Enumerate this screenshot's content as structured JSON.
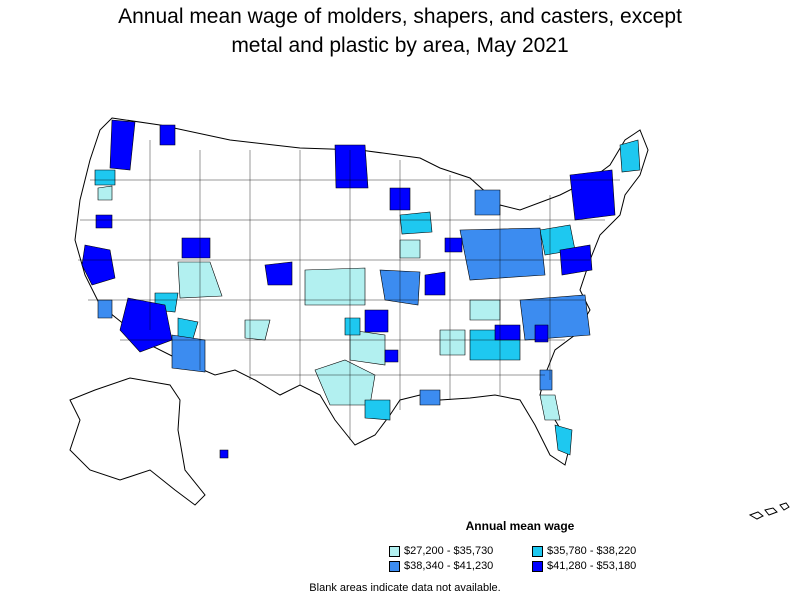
{
  "title_line1": "Annual mean wage of molders, shapers, and casters, except",
  "title_line2": "metal and plastic by area, May 2021",
  "legend": {
    "title": "Annual mean wage",
    "items": [
      {
        "label": "$27,200 - $35,730",
        "color": "#b2f0f0"
      },
      {
        "label": "$35,780 - $38,220",
        "color": "#1ec8f0"
      },
      {
        "label": "$38,340 - $41,230",
        "color": "#3c8cf0"
      },
      {
        "label": "$41,280 - $53,180",
        "color": "#0000ff"
      }
    ]
  },
  "note": "Blank areas indicate data not available.",
  "colors": {
    "tier1": "#b2f0f0",
    "tier2": "#1ec8f0",
    "tier3": "#3c8cf0",
    "tier4": "#0000ff",
    "outline": "#000000",
    "background": "#ffffff"
  }
}
